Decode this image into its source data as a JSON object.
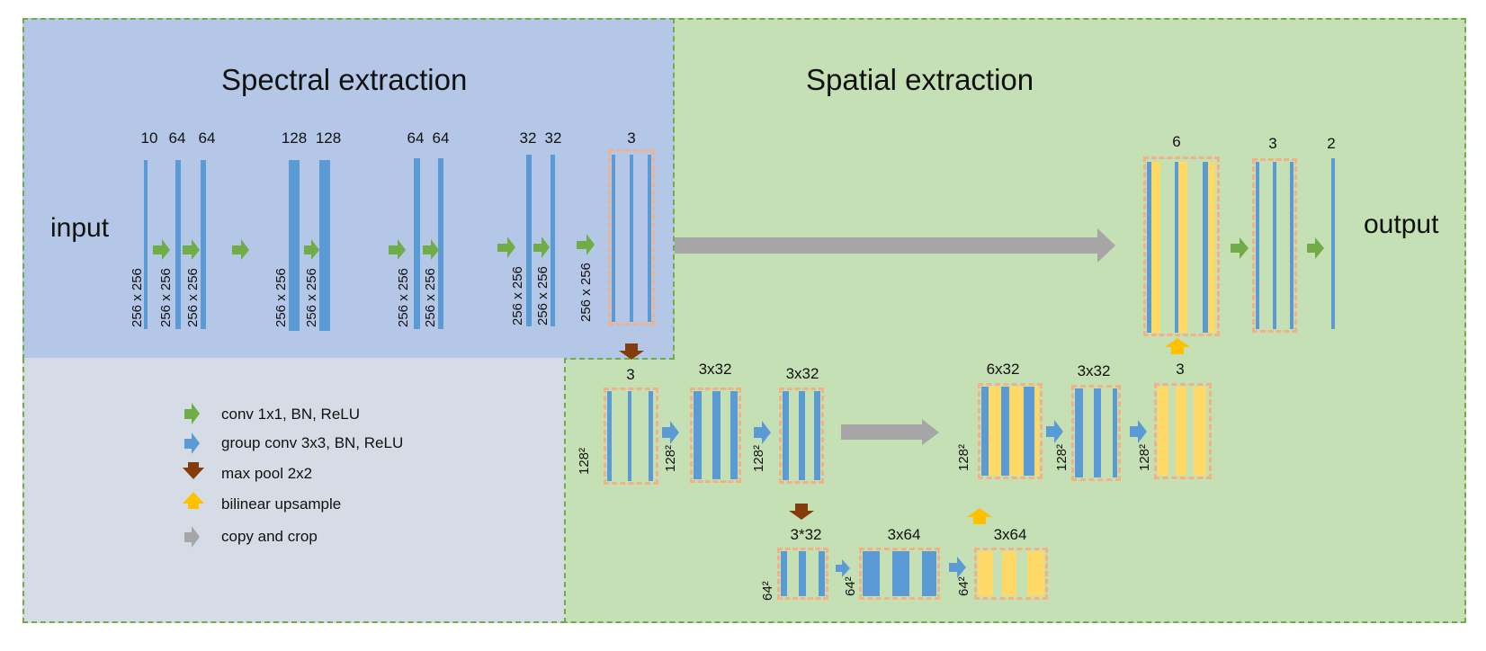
{
  "titles": {
    "spectral": "Spectral extraction",
    "spatial": "Spatial extraction",
    "input": "input",
    "output": "output"
  },
  "channels": {
    "c10": "10",
    "c64a": "64",
    "c64b": "64",
    "c128a": "128",
    "c128b": "128",
    "c64c": "64",
    "c64d": "64",
    "c32a": "32",
    "c32b": "32",
    "c3a": "3",
    "c6": "6",
    "c3b": "3",
    "c2": "2",
    "m3": "3",
    "m3x32a": "3x32",
    "m3x32b": "3x32",
    "m6x32": "6x32",
    "m3x32c": "3x32",
    "m3r": "3",
    "b3s32": "3*32",
    "b3x64a": "3x64",
    "b3x64b": "3x64"
  },
  "sizes": {
    "s256": "256 x 256",
    "s128": "128²",
    "s64": "64²"
  },
  "legend": {
    "conv": "conv 1x1, BN, ReLU",
    "group_conv": "group conv 3x3, BN, ReLU",
    "max_pool": "max pool 2x2",
    "upsample": "bilinear upsample",
    "copy_crop": "copy and crop"
  },
  "colors": {
    "spectral_bg": "#b4c7e7",
    "spatial_bg": "#c5e0b4",
    "legend_bg": "#d6dce5",
    "feature_map": "#5b9bd5",
    "upsampled_map": "#ffd966",
    "dashed_box": "#f4b183",
    "conv_arrow": "#70ad47",
    "group_conv_arrow": "#5b9bd5",
    "pool_arrow": "#843c0c",
    "upsample_arrow": "#ffc000",
    "copy_arrow": "#a6a6a6"
  }
}
